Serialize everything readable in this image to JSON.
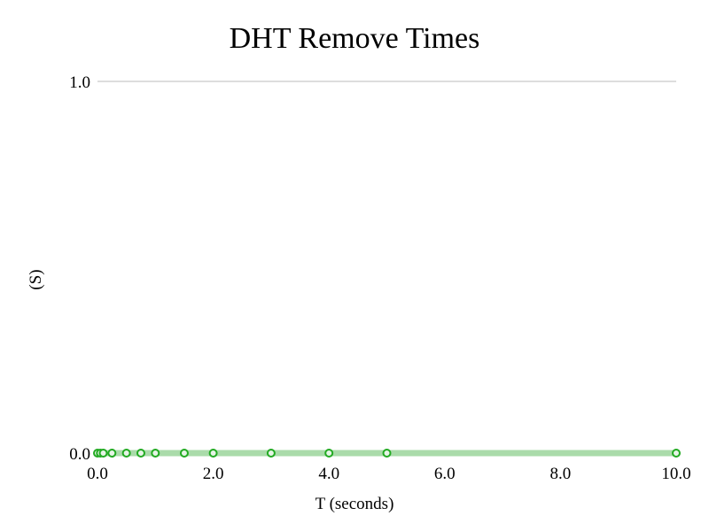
{
  "chart_data": {
    "type": "line",
    "title": "DHT Remove Times",
    "xlabel": "T (seconds)",
    "ylabel": "(S)",
    "xlim": [
      0.0,
      10.0
    ],
    "ylim": [
      0.0,
      1.0
    ],
    "xticks": [
      "0.0",
      "2.0",
      "4.0",
      "6.0",
      "8.0",
      "10.0"
    ],
    "xtick_values": [
      0,
      2,
      4,
      6,
      8,
      10
    ],
    "yticks": [
      "0.0",
      "1.0"
    ],
    "ytick_values": [
      0,
      1
    ],
    "grid": true,
    "series": [
      {
        "color": "#22aa22",
        "line_color": "#aadbaa",
        "points": [
          {
            "x": 0.0,
            "y": 0.0
          },
          {
            "x": 0.05,
            "y": 0.0
          },
          {
            "x": 0.1,
            "y": 0.0
          },
          {
            "x": 0.25,
            "y": 0.0
          },
          {
            "x": 0.5,
            "y": 0.0
          },
          {
            "x": 0.75,
            "y": 0.0
          },
          {
            "x": 1.0,
            "y": 0.0
          },
          {
            "x": 1.5,
            "y": 0.0
          },
          {
            "x": 2.0,
            "y": 0.0
          },
          {
            "x": 3.0,
            "y": 0.0
          },
          {
            "x": 4.0,
            "y": 0.0
          },
          {
            "x": 5.0,
            "y": 0.0
          },
          {
            "x": 10.0,
            "y": 0.0
          }
        ]
      }
    ]
  },
  "colors": {
    "grid": "#dddddd",
    "marker_fill": "#e6f4e6"
  }
}
